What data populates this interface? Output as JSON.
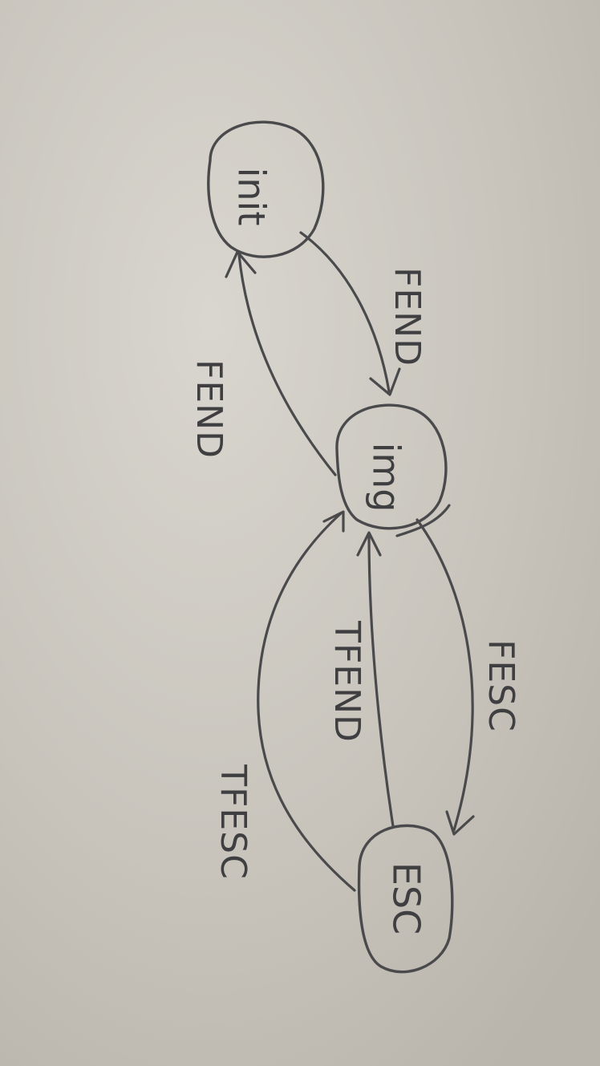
{
  "diagram": {
    "kind": "state-machine",
    "medium": "pencil sketch on paper, photographed rotated 90 degrees",
    "nodes": [
      {
        "id": "init",
        "label": "init"
      },
      {
        "id": "img",
        "label": "img"
      },
      {
        "id": "esc",
        "label": "ESC"
      }
    ],
    "edges": [
      {
        "id": "init-to-img",
        "from": "init",
        "to": "img",
        "label": "FEND"
      },
      {
        "id": "img-to-init",
        "from": "img",
        "to": "init",
        "label": "FEND"
      },
      {
        "id": "img-to-esc",
        "from": "img",
        "to": "esc",
        "label": "FESC"
      },
      {
        "id": "esc-to-img-tfend",
        "from": "esc",
        "to": "img",
        "label": "TFEND"
      },
      {
        "id": "esc-to-img-tfesc",
        "from": "esc",
        "to": "img",
        "label": "TFESC"
      }
    ],
    "colors": {
      "paper": "#c9c5bd",
      "pencil": "#4a4a4c"
    }
  }
}
